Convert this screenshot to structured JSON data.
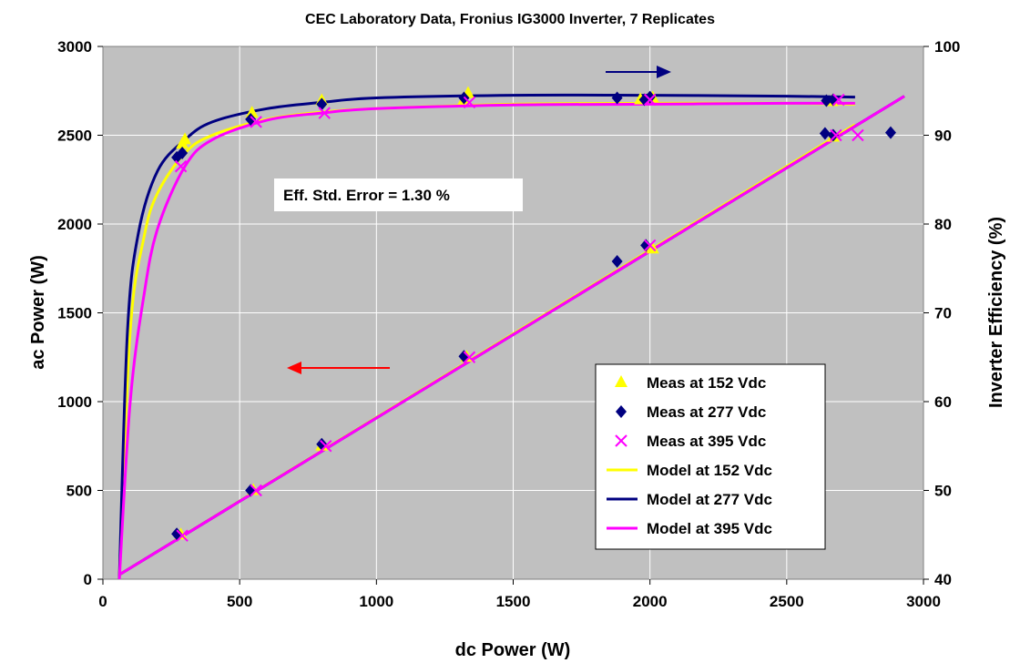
{
  "chart_data": {
    "type": "scatter",
    "title": "CEC Laboratory Data, Fronius IG3000 Inverter, 7 Replicates",
    "xlabel": "dc Power (W)",
    "ylabel": "ac Power (W)",
    "y2label": "Inverter Efficiency (%)",
    "xlim": [
      0,
      3000
    ],
    "ylim": [
      0,
      3000
    ],
    "y2lim": [
      40,
      100
    ],
    "x_ticks": [
      0,
      500,
      1000,
      1500,
      2000,
      2500,
      3000
    ],
    "y_ticks": [
      0,
      500,
      1000,
      1500,
      2000,
      2500,
      3000
    ],
    "y2_ticks": [
      40,
      50,
      60,
      70,
      80,
      90,
      100
    ],
    "grid": "vertical and horizontal major gridlines (white)",
    "plot_background": "#c0c0c0",
    "annotation": "Eff. Std. Error = 1.30 %",
    "legend_position": "lower-right",
    "arrows": [
      {
        "direction": "right",
        "meaning": "efficiency curves read on right axis",
        "color": "#000080"
      },
      {
        "direction": "left",
        "meaning": "power curves read on left axis",
        "color": "#ff0000"
      }
    ],
    "series": [
      {
        "name": "Meas at 152 Vdc",
        "kind": "marker",
        "marker": "triangle",
        "color": "#ffff00",
        "power": [
          [
            285,
            250
          ],
          [
            550,
            500
          ],
          [
            800,
            750
          ],
          [
            1330,
            1250
          ],
          [
            2010,
            1860
          ],
          [
            2670,
            2490
          ]
        ],
        "efficiency": [
          [
            290,
            89.0
          ],
          [
            300,
            89.5
          ],
          [
            545,
            92.5
          ],
          [
            800,
            93.9
          ],
          [
            1320,
            94.0
          ],
          [
            1335,
            94.7
          ],
          [
            1965,
            94.0
          ],
          [
            2010,
            94.2
          ],
          [
            2665,
            93.8
          ]
        ]
      },
      {
        "name": "Meas at 277 Vdc",
        "kind": "marker",
        "marker": "diamond",
        "color": "#000080",
        "power": [
          [
            270,
            255
          ],
          [
            540,
            500
          ],
          [
            800,
            760
          ],
          [
            1320,
            1255
          ],
          [
            1880,
            1790
          ],
          [
            1985,
            1880
          ],
          [
            2640,
            2510
          ],
          [
            2670,
            2500
          ],
          [
            2880,
            2515
          ]
        ],
        "efficiency": [
          [
            270,
            87.5
          ],
          [
            290,
            88.0
          ],
          [
            540,
            91.8
          ],
          [
            800,
            93.5
          ],
          [
            1320,
            94.2
          ],
          [
            1880,
            94.2
          ],
          [
            1980,
            94.0
          ],
          [
            2000,
            94.3
          ],
          [
            2645,
            93.9
          ],
          [
            2670,
            94.0
          ]
        ]
      },
      {
        "name": "Meas at 395 Vdc",
        "kind": "marker",
        "marker": "x",
        "color": "#ff00ff",
        "power": [
          [
            290,
            245
          ],
          [
            560,
            500
          ],
          [
            815,
            750
          ],
          [
            1340,
            1250
          ],
          [
            2000,
            1880
          ],
          [
            2680,
            2500
          ],
          [
            2760,
            2500
          ]
        ],
        "efficiency": [
          [
            285,
            86.5
          ],
          [
            560,
            91.5
          ],
          [
            810,
            92.5
          ],
          [
            1340,
            93.7
          ],
          [
            2000,
            94.0
          ],
          [
            2690,
            94.0
          ]
        ]
      },
      {
        "name": "Model at 152 Vdc",
        "kind": "line",
        "color": "#ffff00",
        "power": [
          [
            65,
            30
          ],
          [
            2750,
            2560
          ]
        ],
        "efficiency": [
          [
            60,
            40
          ],
          [
            100,
            68
          ],
          [
            150,
            78.5
          ],
          [
            200,
            83.5
          ],
          [
            300,
            88.0
          ],
          [
            400,
            90.0
          ],
          [
            600,
            91.8
          ],
          [
            800,
            92.6
          ],
          [
            1000,
            93.0
          ],
          [
            1500,
            93.5
          ],
          [
            2000,
            93.6
          ],
          [
            2500,
            93.6
          ],
          [
            2750,
            93.5
          ]
        ]
      },
      {
        "name": "Model at 277 Vdc",
        "kind": "line",
        "color": "#000080",
        "power": [
          [
            65,
            30
          ],
          [
            2930,
            2720
          ]
        ],
        "efficiency": [
          [
            60,
            40
          ],
          [
            90,
            68
          ],
          [
            130,
            79
          ],
          [
            200,
            86.0
          ],
          [
            300,
            89.5
          ],
          [
            400,
            91.5
          ],
          [
            600,
            93.0
          ],
          [
            800,
            93.7
          ],
          [
            1000,
            94.2
          ],
          [
            1500,
            94.5
          ],
          [
            2000,
            94.5
          ],
          [
            2500,
            94.4
          ],
          [
            2750,
            94.3
          ]
        ]
      },
      {
        "name": "Model at 395 Vdc",
        "kind": "line",
        "color": "#ff00ff",
        "power": [
          [
            65,
            30
          ],
          [
            2930,
            2720
          ]
        ],
        "efficiency": [
          [
            60,
            40
          ],
          [
            100,
            60
          ],
          [
            150,
            72
          ],
          [
            200,
            79.5
          ],
          [
            300,
            86.5
          ],
          [
            400,
            89.5
          ],
          [
            600,
            91.7
          ],
          [
            800,
            92.5
          ],
          [
            1000,
            93.0
          ],
          [
            1500,
            93.4
          ],
          [
            2000,
            93.5
          ],
          [
            2500,
            93.6
          ],
          [
            2750,
            93.6
          ]
        ]
      }
    ]
  }
}
